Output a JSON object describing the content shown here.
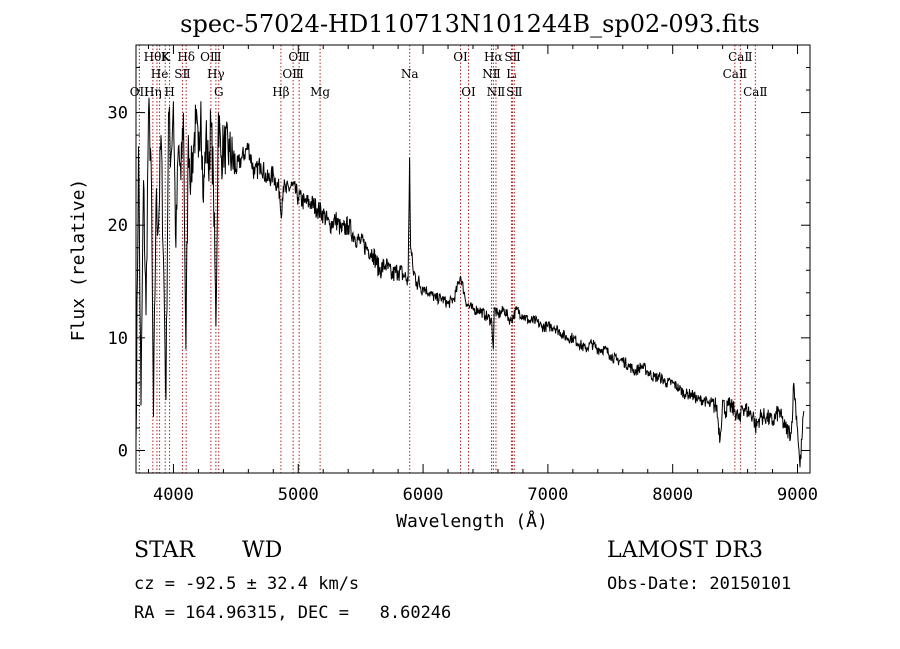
{
  "chart_data": {
    "type": "line",
    "title": "spec-57024-HD110713N101244B_sp02-093.fits",
    "xlabel": "Wavelength (Å)",
    "ylabel": "Flux (relative)",
    "xlim": [
      3700,
      9100
    ],
    "ylim": [
      -2,
      36
    ],
    "xticks": [
      4000,
      5000,
      6000,
      7000,
      8000,
      9000
    ],
    "yticks": [
      0,
      10,
      20,
      30
    ],
    "grid": false,
    "series": [
      {
        "name": "flux",
        "x": [
          3700,
          3720,
          3740,
          3760,
          3780,
          3800,
          3820,
          3840,
          3860,
          3880,
          3900,
          3920,
          3940,
          3960,
          3980,
          4000,
          4020,
          4040,
          4060,
          4080,
          4100,
          4120,
          4140,
          4160,
          4180,
          4200,
          4220,
          4240,
          4260,
          4280,
          4300,
          4320,
          4340,
          4360,
          4380,
          4400,
          4450,
          4500,
          4550,
          4600,
          4650,
          4700,
          4750,
          4800,
          4850,
          4861,
          4880,
          4900,
          4950,
          5000,
          5050,
          5100,
          5150,
          5200,
          5250,
          5300,
          5350,
          5400,
          5450,
          5500,
          5550,
          5600,
          5650,
          5700,
          5750,
          5800,
          5850,
          5880,
          5892,
          5900,
          5920,
          5950,
          6000,
          6050,
          6100,
          6150,
          6200,
          6250,
          6300,
          6350,
          6400,
          6450,
          6500,
          6550,
          6563,
          6570,
          6600,
          6650,
          6700,
          6750,
          6800,
          6850,
          6900,
          6950,
          7000,
          7050,
          7100,
          7150,
          7200,
          7250,
          7300,
          7350,
          7400,
          7450,
          7500,
          7550,
          7600,
          7650,
          7700,
          7750,
          7800,
          7850,
          7900,
          7950,
          8000,
          8050,
          8100,
          8150,
          8200,
          8250,
          8300,
          8350,
          8380,
          8400,
          8420,
          8450,
          8500,
          8542,
          8550,
          8600,
          8650,
          8662,
          8700,
          8750,
          8800,
          8850,
          8900,
          8950,
          8970,
          9000,
          9020,
          9050
        ],
        "y": [
          0.8,
          27.0,
          4.0,
          24.0,
          12.0,
          30.0,
          26.0,
          3.0,
          22.0,
          20.0,
          28.0,
          17.0,
          4.5,
          30.0,
          26.0,
          31.0,
          18.0,
          27.0,
          24.0,
          30.0,
          9.0,
          28.0,
          24.0,
          27.0,
          29.0,
          26.0,
          31.0,
          22.0,
          28.0,
          25.0,
          29.0,
          24.0,
          11.0,
          30.0,
          26.0,
          27.0,
          26.5,
          25.0,
          26.0,
          27.0,
          24.5,
          25.5,
          24.0,
          24.5,
          23.0,
          21.0,
          23.5,
          23.0,
          23.5,
          22.5,
          22.0,
          22.0,
          21.5,
          21.0,
          20.0,
          20.5,
          19.5,
          20.0,
          19.0,
          18.5,
          18.0,
          17.5,
          16.0,
          16.5,
          15.5,
          16.0,
          15.5,
          15.0,
          26.0,
          18.0,
          16.0,
          15.0,
          14.5,
          14.0,
          13.5,
          13.5,
          13.0,
          13.5,
          15.5,
          13.0,
          12.5,
          12.5,
          12.0,
          11.5,
          9.0,
          12.5,
          12.0,
          12.5,
          11.5,
          12.5,
          12.0,
          11.5,
          11.5,
          11.0,
          11.0,
          11.0,
          10.5,
          10.0,
          10.0,
          9.5,
          9.0,
          9.5,
          9.0,
          9.0,
          8.5,
          8.0,
          8.0,
          7.5,
          7.0,
          7.5,
          7.0,
          6.5,
          6.5,
          6.0,
          6.0,
          5.5,
          5.0,
          5.0,
          4.5,
          4.5,
          4.0,
          4.0,
          1.0,
          4.5,
          3.5,
          4.0,
          3.5,
          2.5,
          4.0,
          3.5,
          3.0,
          2.0,
          3.0,
          3.0,
          2.5,
          3.5,
          2.0,
          1.5,
          6.0,
          2.0,
          -1.5,
          3.5
        ]
      }
    ],
    "lines": [
      {
        "label": "OⅠⅠ",
        "x": 3727,
        "row": 2
      },
      {
        "label": "Hη",
        "x": 3835,
        "row": 2
      },
      {
        "label": "HθK",
        "x": 3868,
        "row": 0
      },
      {
        "label": "He",
        "x": 3889,
        "row": 1
      },
      {
        "label": "K",
        "x": 3934,
        "row": 0
      },
      {
        "label": "H",
        "x": 3969,
        "row": 2
      },
      {
        "label": "SⅡ",
        "x": 4072,
        "row": 1
      },
      {
        "label": "Hδ",
        "x": 4102,
        "row": 0
      },
      {
        "label": "OⅢ",
        "x": 4300,
        "row": 0
      },
      {
        "label": "Hγ",
        "x": 4340,
        "row": 1
      },
      {
        "label": "G",
        "x": 4363,
        "row": 2
      },
      {
        "label": "Hβ",
        "x": 4861,
        "row": 2
      },
      {
        "label": "OⅢ",
        "x": 4959,
        "row": 1
      },
      {
        "label": "OⅢ",
        "x": 5007,
        "row": 0
      },
      {
        "label": "Mg",
        "x": 5175,
        "row": 2
      },
      {
        "label": "Na",
        "x": 5893,
        "row": 1
      },
      {
        "label": "OⅠ",
        "x": 6300,
        "row": 0
      },
      {
        "label": "OⅠ",
        "x": 6364,
        "row": 2
      },
      {
        "label": "NⅡ",
        "x": 6548,
        "row": 1
      },
      {
        "label": "Hα",
        "x": 6563,
        "row": 0
      },
      {
        "label": "NⅡ",
        "x": 6584,
        "row": 2
      },
      {
        "label": "Lᵢ",
        "x": 6708,
        "row": 1
      },
      {
        "label": "SⅡ",
        "x": 6717,
        "row": 0
      },
      {
        "label": "SⅡ",
        "x": 6731,
        "row": 2
      },
      {
        "label": "CaⅡ",
        "x": 8498,
        "row": 1
      },
      {
        "label": "CaⅡ",
        "x": 8542,
        "row": 0
      },
      {
        "label": "CaⅡ",
        "x": 8662,
        "row": 2
      }
    ],
    "line_color": "#b22222"
  },
  "info": {
    "class_label": "STAR",
    "subclass_label": "WD",
    "cz_text": "cz = -92.5 ± 32.4 km/s",
    "coords_text": "RA = 164.96315, DEC =   8.60246",
    "survey_label": "LAMOST DR3",
    "obs_date_text": "Obs-Date: 20150101"
  }
}
